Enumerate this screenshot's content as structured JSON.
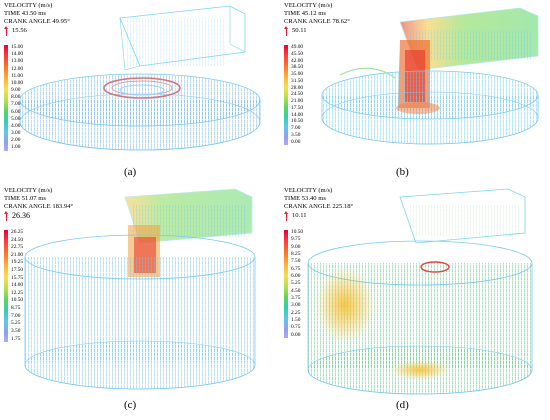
{
  "panels": [
    {
      "caption": "(a)",
      "title": "VELOCITY (m/s)",
      "time": "TIME 43.50 ms",
      "crank": "CRANK ANGLE 49.95°",
      "ref": "15.56",
      "ticks": [
        "15.00",
        "14.00",
        "13.00",
        "12.00",
        "11.00",
        "10.00",
        "9.00",
        "8.00",
        "7.00",
        "6.00",
        "5.00",
        "4.00",
        "3.00",
        "2.00",
        "1.00"
      ]
    },
    {
      "caption": "(b)",
      "title": "VELOCITY (m/s)",
      "time": "TIME 45.12 ms",
      "crank": "CRANK ANGLE 78.62°",
      "ref": "50.11",
      "ticks": [
        "49.00",
        "45.50",
        "42.00",
        "38.50",
        "35.00",
        "31.50",
        "28.00",
        "24.50",
        "21.00",
        "17.50",
        "14.00",
        "10.50",
        "7.00",
        "3.50",
        "0.00"
      ]
    },
    {
      "caption": "(c)",
      "title": "VELOCITY (m/s)",
      "time": "TIME 51.07 ms",
      "crank": "CRANK ANGLE 183.94°",
      "ref": "26.36",
      "ticks": [
        "26.25",
        "24.50",
        "22.75",
        "21.00",
        "19.25",
        "17.50",
        "15.75",
        "14.00",
        "12.25",
        "10.50",
        "8.75",
        "7.00",
        "5.25",
        "3.50",
        "1.75"
      ]
    },
    {
      "caption": "(d)",
      "title": "VELOCITY (m/s)",
      "time": "TIME 53.40 ms",
      "crank": "CRANK ANGLE 225.18°",
      "ref": "10.11",
      "ticks": [
        "10.50",
        "9.75",
        "9.00",
        "8.25",
        "7.50",
        "6.75",
        "6.00",
        "5.25",
        "4.50",
        "3.75",
        "3.00",
        "2.25",
        "1.50",
        "0.75",
        "0.00"
      ]
    }
  ]
}
